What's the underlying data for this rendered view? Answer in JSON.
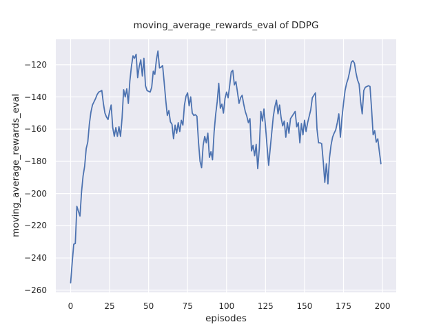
{
  "chart_data": {
    "type": "line",
    "title": "moving_average_rewards_eval of DDPG",
    "xlabel": "episodes",
    "ylabel": "moving_average_rewards_eval",
    "x_ticks": [
      0,
      25,
      50,
      75,
      100,
      125,
      150,
      175,
      200
    ],
    "y_ticks": [
      -120,
      -140,
      -160,
      -180,
      -200,
      -220,
      -240,
      -260
    ],
    "xlim": [
      -9.5,
      208.8
    ],
    "ylim": [
      -261.4,
      -104.2
    ],
    "grid": true,
    "legend_position": "none",
    "style": "seaborn-darkgrid",
    "background_color": "#eaeaf2",
    "grid_color": "#ffffff",
    "line_color": "#4c72b0",
    "text_color": "#262626",
    "series": [
      {
        "name": "moving_average_rewards_eval",
        "x_start": 0,
        "x_step": 1,
        "y": [
          -255.5,
          -243,
          -231.5,
          -231,
          -208,
          -211,
          -214,
          -199,
          -189,
          -183,
          -172,
          -168,
          -157,
          -149.5,
          -145,
          -143,
          -141,
          -138.5,
          -137,
          -136.5,
          -136,
          -144,
          -150,
          -152.5,
          -154,
          -149,
          -145,
          -159,
          -164.5,
          -159,
          -164.5,
          -158.5,
          -164.5,
          -153,
          -135.5,
          -140,
          -135,
          -144,
          -130,
          -121,
          -114.5,
          -116,
          -113.5,
          -128,
          -121,
          -117,
          -127,
          -116,
          -133,
          -136,
          -136.5,
          -137,
          -134,
          -124,
          -126,
          -117,
          -111.5,
          -122,
          -121.5,
          -120.5,
          -131,
          -142,
          -151.5,
          -148.5,
          -155.5,
          -157,
          -166,
          -157.5,
          -162.5,
          -156,
          -161.5,
          -154.5,
          -157.5,
          -145,
          -139.5,
          -137.5,
          -145.5,
          -140,
          -150,
          -151.5,
          -151,
          -152,
          -168,
          -180,
          -184,
          -170,
          -164.5,
          -168.5,
          -162.5,
          -177.5,
          -174,
          -179,
          -162,
          -151,
          -143,
          -131.5,
          -147,
          -144.5,
          -150,
          -141,
          -137,
          -140.5,
          -133,
          -124.5,
          -123.5,
          -132.5,
          -130.5,
          -137,
          -144,
          -140.5,
          -139,
          -144.5,
          -149,
          -152,
          -156,
          -153.5,
          -173.5,
          -170,
          -176.5,
          -169.5,
          -184.5,
          -172,
          -149,
          -155,
          -147.5,
          -158.5,
          -171,
          -182.5,
          -172,
          -162,
          -152,
          -146,
          -142,
          -150.5,
          -145,
          -153,
          -158,
          -155,
          -165,
          -156,
          -162.5,
          -153.5,
          -152,
          -150.5,
          -149,
          -158.5,
          -156,
          -168.5,
          -156.5,
          -163.5,
          -154.5,
          -161.5,
          -156,
          -152,
          -148,
          -140.5,
          -139,
          -137.5,
          -160,
          -168.5,
          -168.5,
          -169,
          -180,
          -193,
          -181.5,
          -194,
          -178,
          -170,
          -165,
          -162.5,
          -160.5,
          -156,
          -150.5,
          -165,
          -153,
          -144,
          -136,
          -131.5,
          -128.5,
          -124,
          -118.5,
          -117.5,
          -119,
          -125,
          -129.5,
          -132,
          -143,
          -150.5,
          -136,
          -134,
          -133.5,
          -133,
          -133.5,
          -147.5,
          -163.5,
          -161,
          -168,
          -166,
          -174,
          -181.5
        ]
      }
    ]
  }
}
